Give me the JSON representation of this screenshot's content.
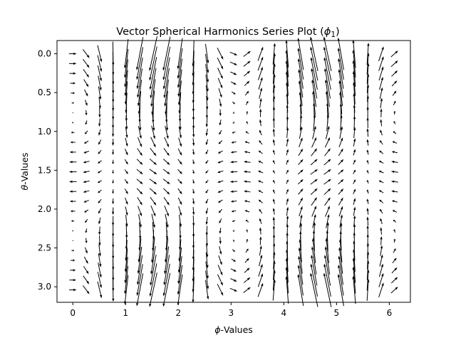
{
  "chart_data": {
    "type": "quiver",
    "title": "Vector Spherical Harmonics Series Plot (ϕ1)",
    "title_parts": {
      "text": "Vector Spherical Harmonics Series Plot (",
      "math": "ϕ",
      "sub": "1",
      "close": ")"
    },
    "xlabel_parts": {
      "math": "ϕ",
      "text": "-Values"
    },
    "ylabel_parts": {
      "math": "θ",
      "text": "-Values"
    },
    "xlim": [
      -0.3,
      6.4
    ],
    "ylim": [
      3.2,
      -0.17
    ],
    "y_inverted": true,
    "grid": false,
    "xticks": [
      0,
      1,
      2,
      3,
      4,
      5,
      6
    ],
    "xtick_labels": [
      "0",
      "1",
      "2",
      "3",
      "4",
      "5",
      "6"
    ],
    "yticks": [
      0.0,
      0.5,
      1.0,
      1.5,
      2.0,
      2.5,
      3.0
    ],
    "ytick_labels": [
      "0.0",
      "0.5",
      "1.0",
      "1.5",
      "2.0",
      "2.5",
      "3.0"
    ],
    "field": {
      "phi_min": 0.0,
      "phi_max": 6.1,
      "phi_count": 25,
      "theta_min": 0.0,
      "theta_max": 3.04,
      "theta_count": 25,
      "u_expr": "0.22*cos(2*theta)*cos(2*phi)",
      "v_expr": "-sin(phi)*(0.15 + 0.85*cos(theta)^2)"
    },
    "arrow_color": "#000000"
  }
}
